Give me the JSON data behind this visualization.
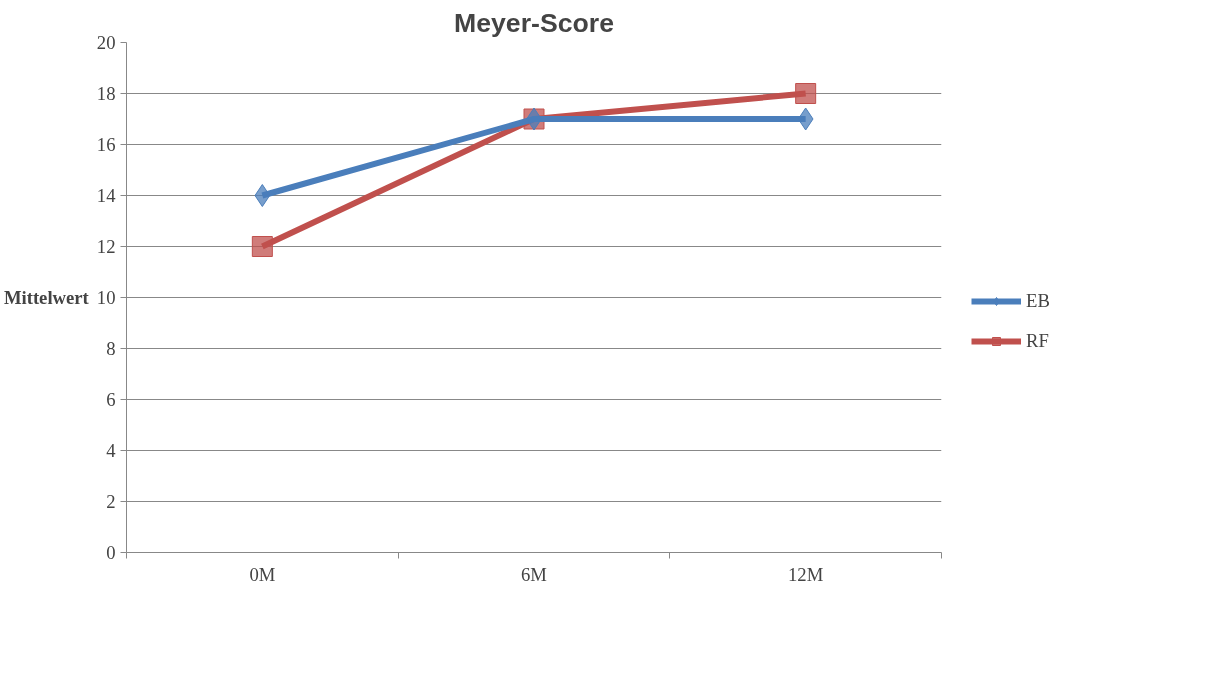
{
  "chart_data": {
    "type": "line",
    "title": "Meyer-Score",
    "ylabel": "Mittelwert",
    "categories": [
      "0M",
      "6M",
      "12M"
    ],
    "series": [
      {
        "name": "EB",
        "color": "#4a7ebb",
        "values": [
          14,
          17,
          17
        ],
        "marker": "diamond"
      },
      {
        "name": "RF",
        "color": "#c0504d",
        "values": [
          12,
          17,
          18
        ],
        "marker": "square"
      }
    ],
    "ylim": [
      0,
      20
    ],
    "yticks": [
      0,
      2,
      4,
      6,
      8,
      10,
      12,
      14,
      16,
      18,
      20
    ],
    "grid": "y",
    "legend": "right",
    "line_style": "solid"
  }
}
